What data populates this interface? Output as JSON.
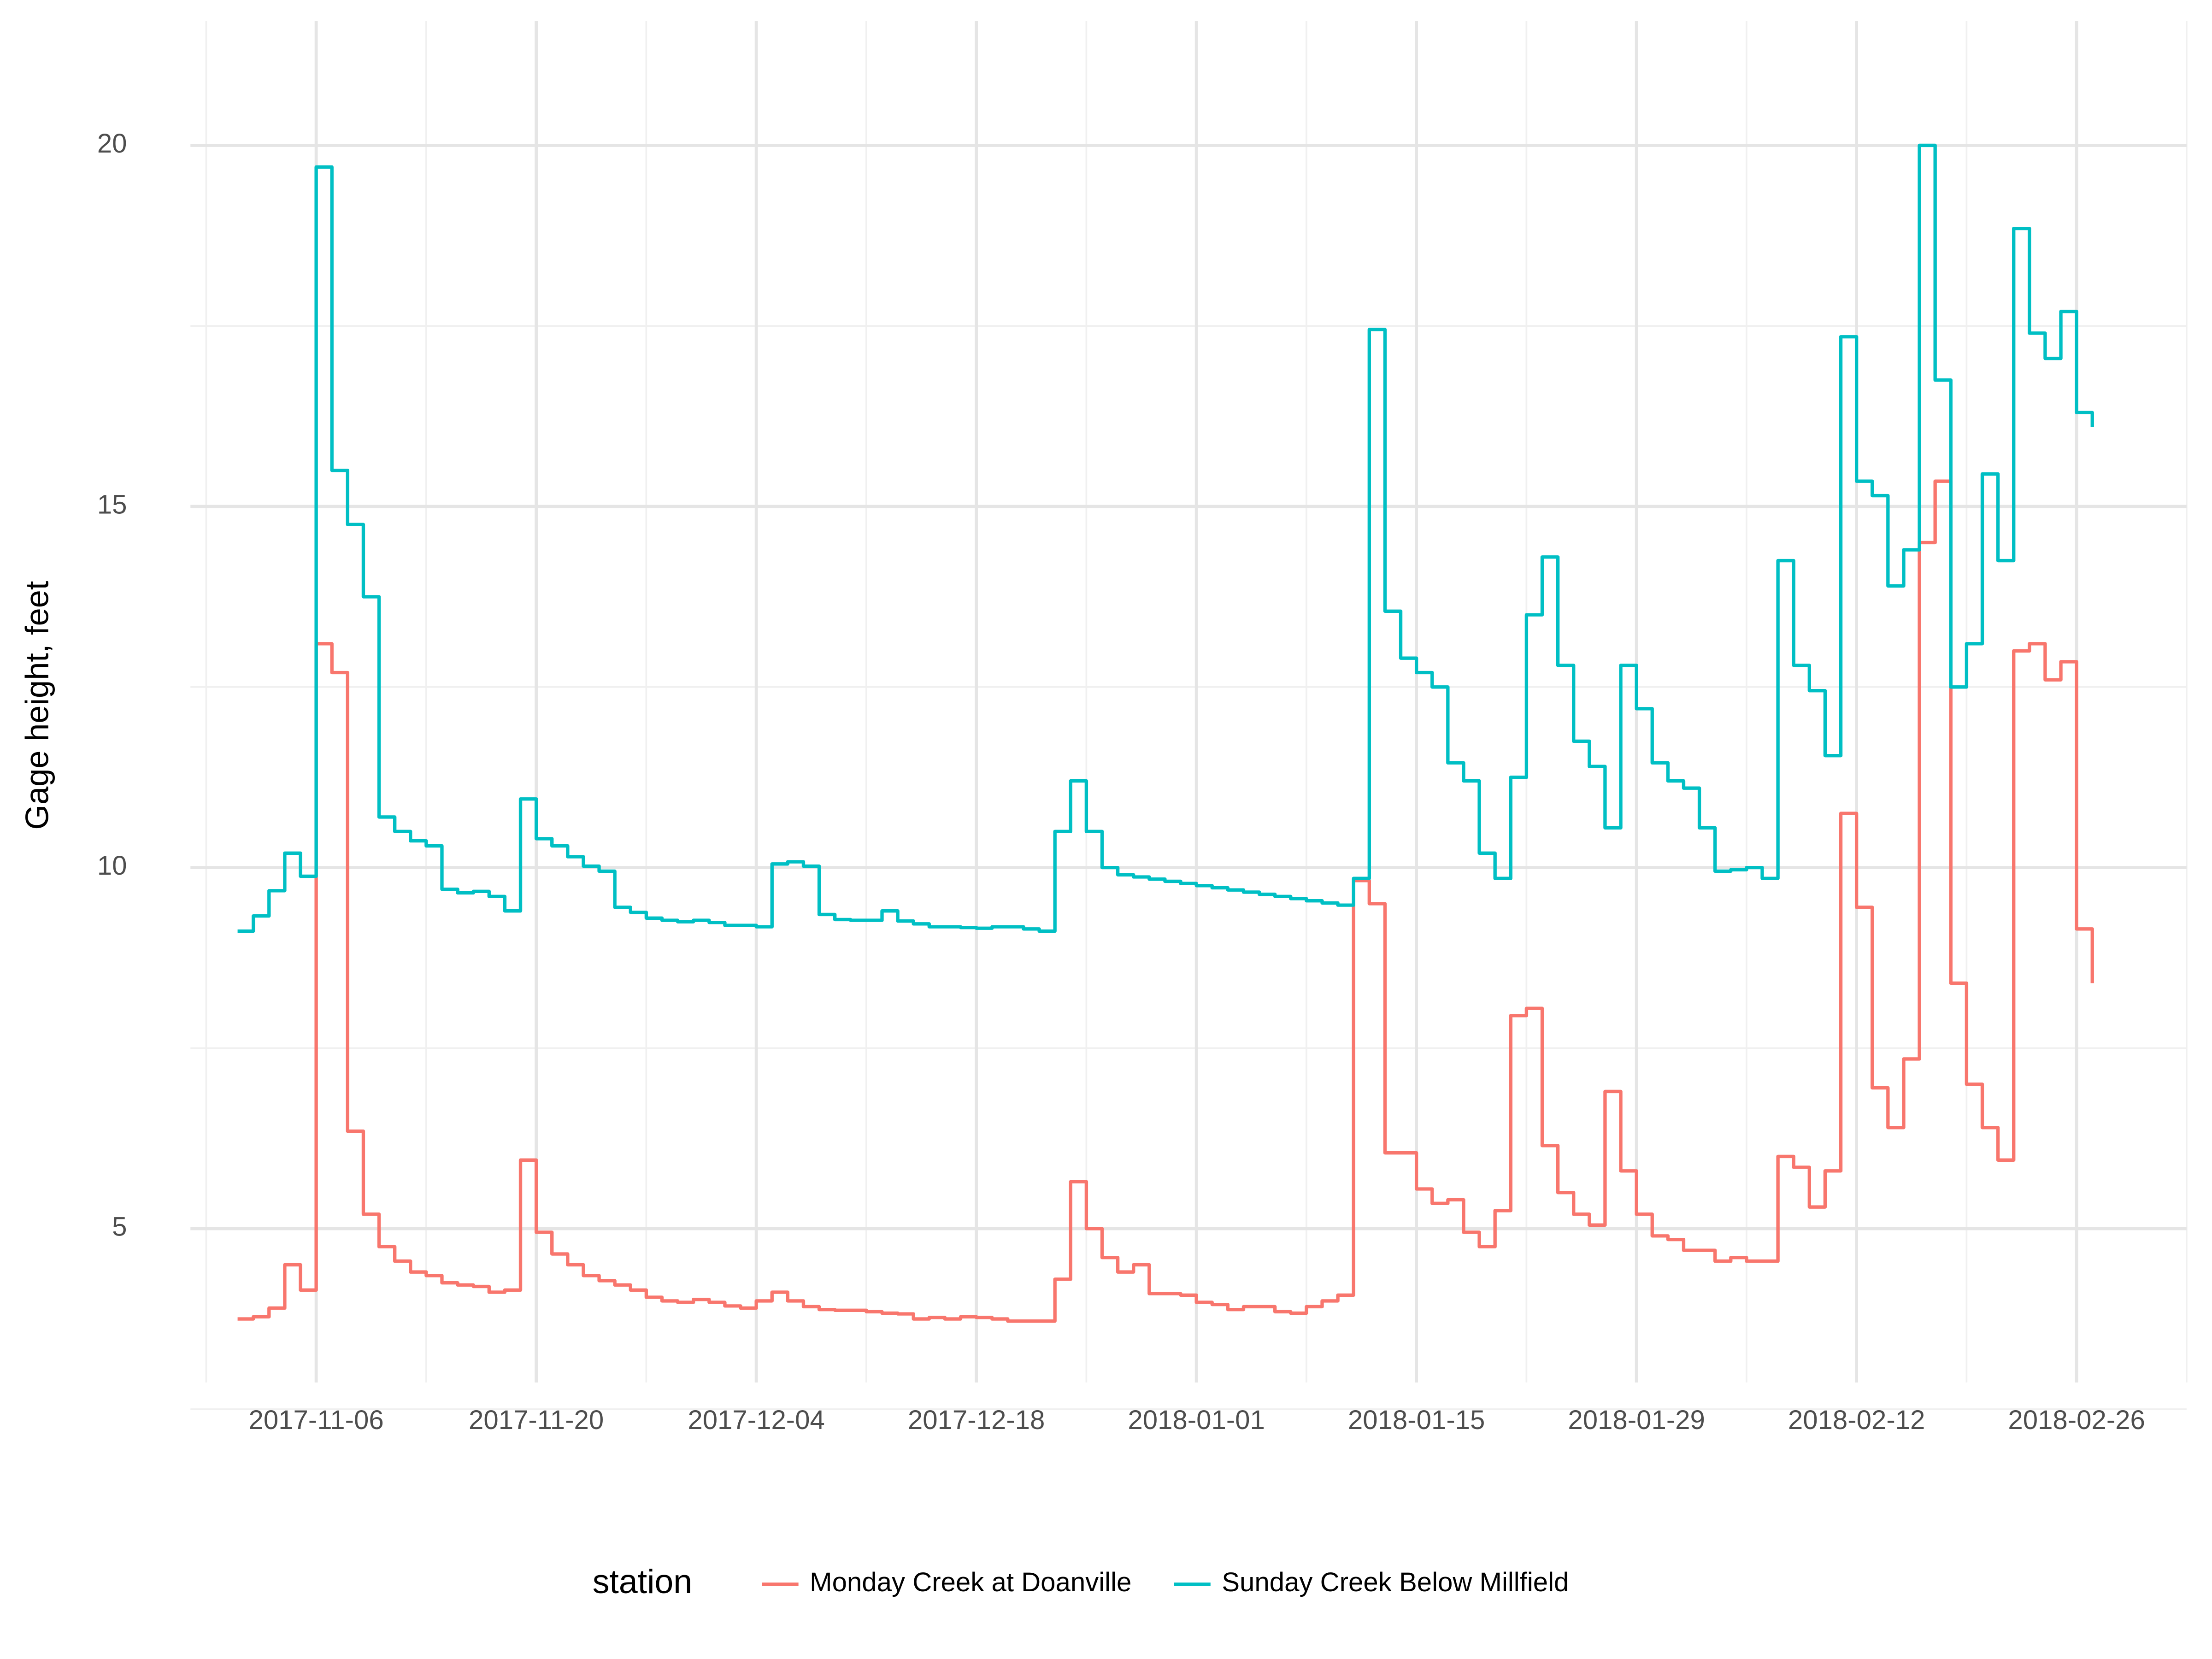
{
  "chart_data": {
    "type": "step",
    "y_label": "Gage height, feet",
    "legend_title": "station",
    "legend_position": "bottom",
    "grid": true,
    "xlim": [
      "2017-10-29",
      "2018-03-05"
    ],
    "xticks": [
      "2017-11-06",
      "2017-11-20",
      "2017-12-04",
      "2017-12-18",
      "2018-01-01",
      "2018-01-15",
      "2018-01-29",
      "2018-02-12",
      "2018-02-26"
    ],
    "ylim": [
      2.87,
      21.72
    ],
    "yticks": [
      5,
      10,
      15,
      20
    ],
    "x": [
      "2017-11-01",
      "2017-11-02",
      "2017-11-03",
      "2017-11-04",
      "2017-11-05",
      "2017-11-06",
      "2017-11-07",
      "2017-11-08",
      "2017-11-09",
      "2017-11-10",
      "2017-11-11",
      "2017-11-12",
      "2017-11-13",
      "2017-11-14",
      "2017-11-15",
      "2017-11-16",
      "2017-11-17",
      "2017-11-18",
      "2017-11-19",
      "2017-11-20",
      "2017-11-21",
      "2017-11-22",
      "2017-11-23",
      "2017-11-24",
      "2017-11-25",
      "2017-11-26",
      "2017-11-27",
      "2017-11-28",
      "2017-11-29",
      "2017-11-30",
      "2017-12-01",
      "2017-12-02",
      "2017-12-03",
      "2017-12-04",
      "2017-12-05",
      "2017-12-06",
      "2017-12-07",
      "2017-12-08",
      "2017-12-09",
      "2017-12-10",
      "2017-12-11",
      "2017-12-12",
      "2017-12-13",
      "2017-12-14",
      "2017-12-15",
      "2017-12-16",
      "2017-12-17",
      "2017-12-18",
      "2017-12-19",
      "2017-12-20",
      "2017-12-21",
      "2017-12-22",
      "2017-12-23",
      "2017-12-24",
      "2017-12-25",
      "2017-12-26",
      "2017-12-27",
      "2017-12-28",
      "2017-12-29",
      "2017-12-30",
      "2017-12-31",
      "2018-01-01",
      "2018-01-02",
      "2018-01-03",
      "2018-01-04",
      "2018-01-05",
      "2018-01-06",
      "2018-01-07",
      "2018-01-08",
      "2018-01-09",
      "2018-01-10",
      "2018-01-11",
      "2018-01-12",
      "2018-01-13",
      "2018-01-14",
      "2018-01-15",
      "2018-01-16",
      "2018-01-17",
      "2018-01-18",
      "2018-01-19",
      "2018-01-20",
      "2018-01-21",
      "2018-01-22",
      "2018-01-23",
      "2018-01-24",
      "2018-01-25",
      "2018-01-26",
      "2018-01-27",
      "2018-01-28",
      "2018-01-29",
      "2018-01-30",
      "2018-01-31",
      "2018-02-01",
      "2018-02-02",
      "2018-02-03",
      "2018-02-04",
      "2018-02-05",
      "2018-02-06",
      "2018-02-07",
      "2018-02-08",
      "2018-02-09",
      "2018-02-10",
      "2018-02-11",
      "2018-02-12",
      "2018-02-13",
      "2018-02-14",
      "2018-02-15",
      "2018-02-16",
      "2018-02-17",
      "2018-02-18",
      "2018-02-19",
      "2018-02-20",
      "2018-02-21",
      "2018-02-22",
      "2018-02-23",
      "2018-02-24",
      "2018-02-25",
      "2018-02-26",
      "2018-02-27"
    ],
    "series": [
      {
        "name": "Monday Creek at Doanville",
        "color": "#F8766D",
        "values": [
          3.75,
          3.78,
          3.9,
          4.5,
          4.15,
          13.1,
          12.7,
          6.35,
          5.2,
          4.75,
          4.55,
          4.4,
          4.35,
          4.25,
          4.22,
          4.2,
          4.12,
          4.15,
          5.95,
          4.95,
          4.65,
          4.5,
          4.35,
          4.28,
          4.22,
          4.15,
          4.05,
          4.0,
          3.98,
          4.02,
          3.98,
          3.93,
          3.9,
          4.0,
          4.12,
          4.0,
          3.92,
          3.88,
          3.87,
          3.87,
          3.85,
          3.83,
          3.82,
          3.75,
          3.77,
          3.75,
          3.78,
          3.77,
          3.75,
          3.72,
          3.72,
          3.72,
          4.3,
          5.65,
          5.0,
          4.6,
          4.4,
          4.5,
          4.1,
          4.1,
          4.08,
          3.98,
          3.95,
          3.88,
          3.92,
          3.92,
          3.85,
          3.83,
          3.92,
          4.0,
          4.08,
          9.82,
          9.5,
          6.05,
          6.05,
          5.55,
          5.35,
          5.4,
          4.95,
          4.75,
          5.25,
          7.95,
          8.05,
          6.15,
          5.5,
          5.2,
          5.05,
          6.9,
          5.8,
          5.2,
          4.9,
          4.85,
          4.7,
          4.7,
          4.55,
          4.6,
          4.55,
          4.55,
          6.0,
          5.85,
          5.3,
          5.8,
          10.75,
          9.45,
          6.95,
          6.4,
          7.35,
          14.5,
          15.35,
          8.4,
          7.0,
          6.4,
          5.95,
          13.0,
          13.1,
          12.6,
          12.85,
          9.15,
          8.4
        ]
      },
      {
        "name": "Sunday Creek Below Millfield",
        "color": "#00BFC4",
        "values": [
          9.12,
          9.33,
          9.68,
          10.2,
          9.88,
          19.7,
          15.5,
          14.75,
          13.75,
          10.7,
          10.5,
          10.37,
          10.3,
          9.7,
          9.65,
          9.67,
          9.6,
          9.4,
          10.95,
          10.4,
          10.3,
          10.15,
          10.02,
          9.95,
          9.45,
          9.38,
          9.3,
          9.27,
          9.25,
          9.27,
          9.24,
          9.2,
          9.2,
          9.18,
          10.05,
          10.08,
          10.02,
          9.35,
          9.28,
          9.27,
          9.27,
          9.4,
          9.26,
          9.22,
          9.18,
          9.18,
          9.17,
          9.16,
          9.18,
          9.18,
          9.15,
          9.12,
          10.5,
          11.2,
          10.5,
          10.0,
          9.9,
          9.87,
          9.84,
          9.81,
          9.78,
          9.75,
          9.72,
          9.69,
          9.66,
          9.63,
          9.6,
          9.57,
          9.54,
          9.51,
          9.48,
          9.85,
          17.45,
          13.55,
          12.9,
          12.7,
          12.5,
          11.45,
          11.2,
          10.2,
          9.85,
          11.25,
          13.5,
          14.3,
          12.8,
          11.75,
          11.4,
          10.55,
          12.8,
          12.2,
          11.45,
          11.2,
          11.1,
          10.55,
          9.95,
          9.97,
          10.0,
          9.85,
          14.25,
          12.8,
          12.45,
          11.55,
          17.35,
          15.35,
          15.15,
          13.9,
          14.4,
          20.0,
          16.75,
          12.5,
          13.1,
          15.45,
          14.25,
          18.85,
          17.4,
          17.05,
          17.7,
          16.3,
          16.1
        ]
      }
    ]
  }
}
